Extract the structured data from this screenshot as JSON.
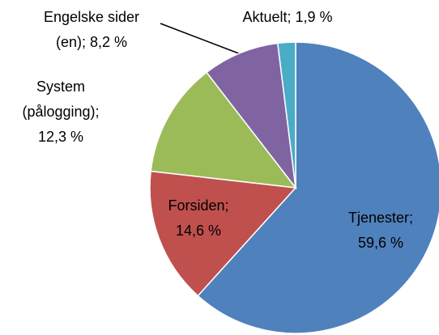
{
  "chart_data": {
    "type": "pie",
    "values": [
      59.6,
      14.6,
      12.3,
      8.2,
      1.9
    ],
    "value_labels": [
      [
        "Tjenester;",
        "59,6 %"
      ],
      [
        "Forsiden;",
        "14,6 %"
      ],
      [
        "System",
        "(pålogging);",
        "12,3 %"
      ],
      [
        "Engelske sider",
        "(en); 8,2 %"
      ],
      [
        "Aktuelt; 1,9 %"
      ]
    ],
    "colors": [
      "#4f81bd",
      "#c0504d",
      "#9bbb59",
      "#8064a2",
      "#4bacc6"
    ]
  }
}
